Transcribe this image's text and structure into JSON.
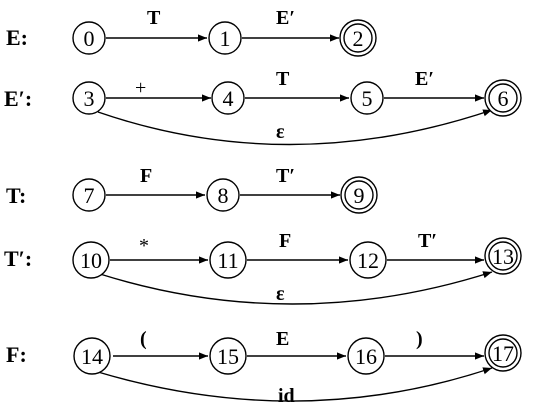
{
  "rows": [
    {
      "label": "E:",
      "states": [
        "0",
        "1",
        "2"
      ],
      "transitions": [
        "T",
        "E′"
      ],
      "epsilon": ""
    },
    {
      "label": "E′:",
      "states": [
        "3",
        "4",
        "5",
        "6"
      ],
      "transitions": [
        "+",
        "T",
        "E′"
      ],
      "epsilon": "ε"
    },
    {
      "label": "T:",
      "states": [
        "7",
        "8",
        "9"
      ],
      "transitions": [
        "F",
        "T′"
      ],
      "epsilon": ""
    },
    {
      "label": "T′:",
      "states": [
        "10",
        "11",
        "12",
        "13"
      ],
      "transitions": [
        "*",
        "F",
        "T′"
      ],
      "epsilon": "ε"
    },
    {
      "label": "F:",
      "states": [
        "14",
        "15",
        "16",
        "17"
      ],
      "transitions": [
        "(",
        "E",
        ")"
      ],
      "epsilon": "id"
    }
  ],
  "accepting_states": [
    "2",
    "6",
    "9",
    "13",
    "17"
  ]
}
